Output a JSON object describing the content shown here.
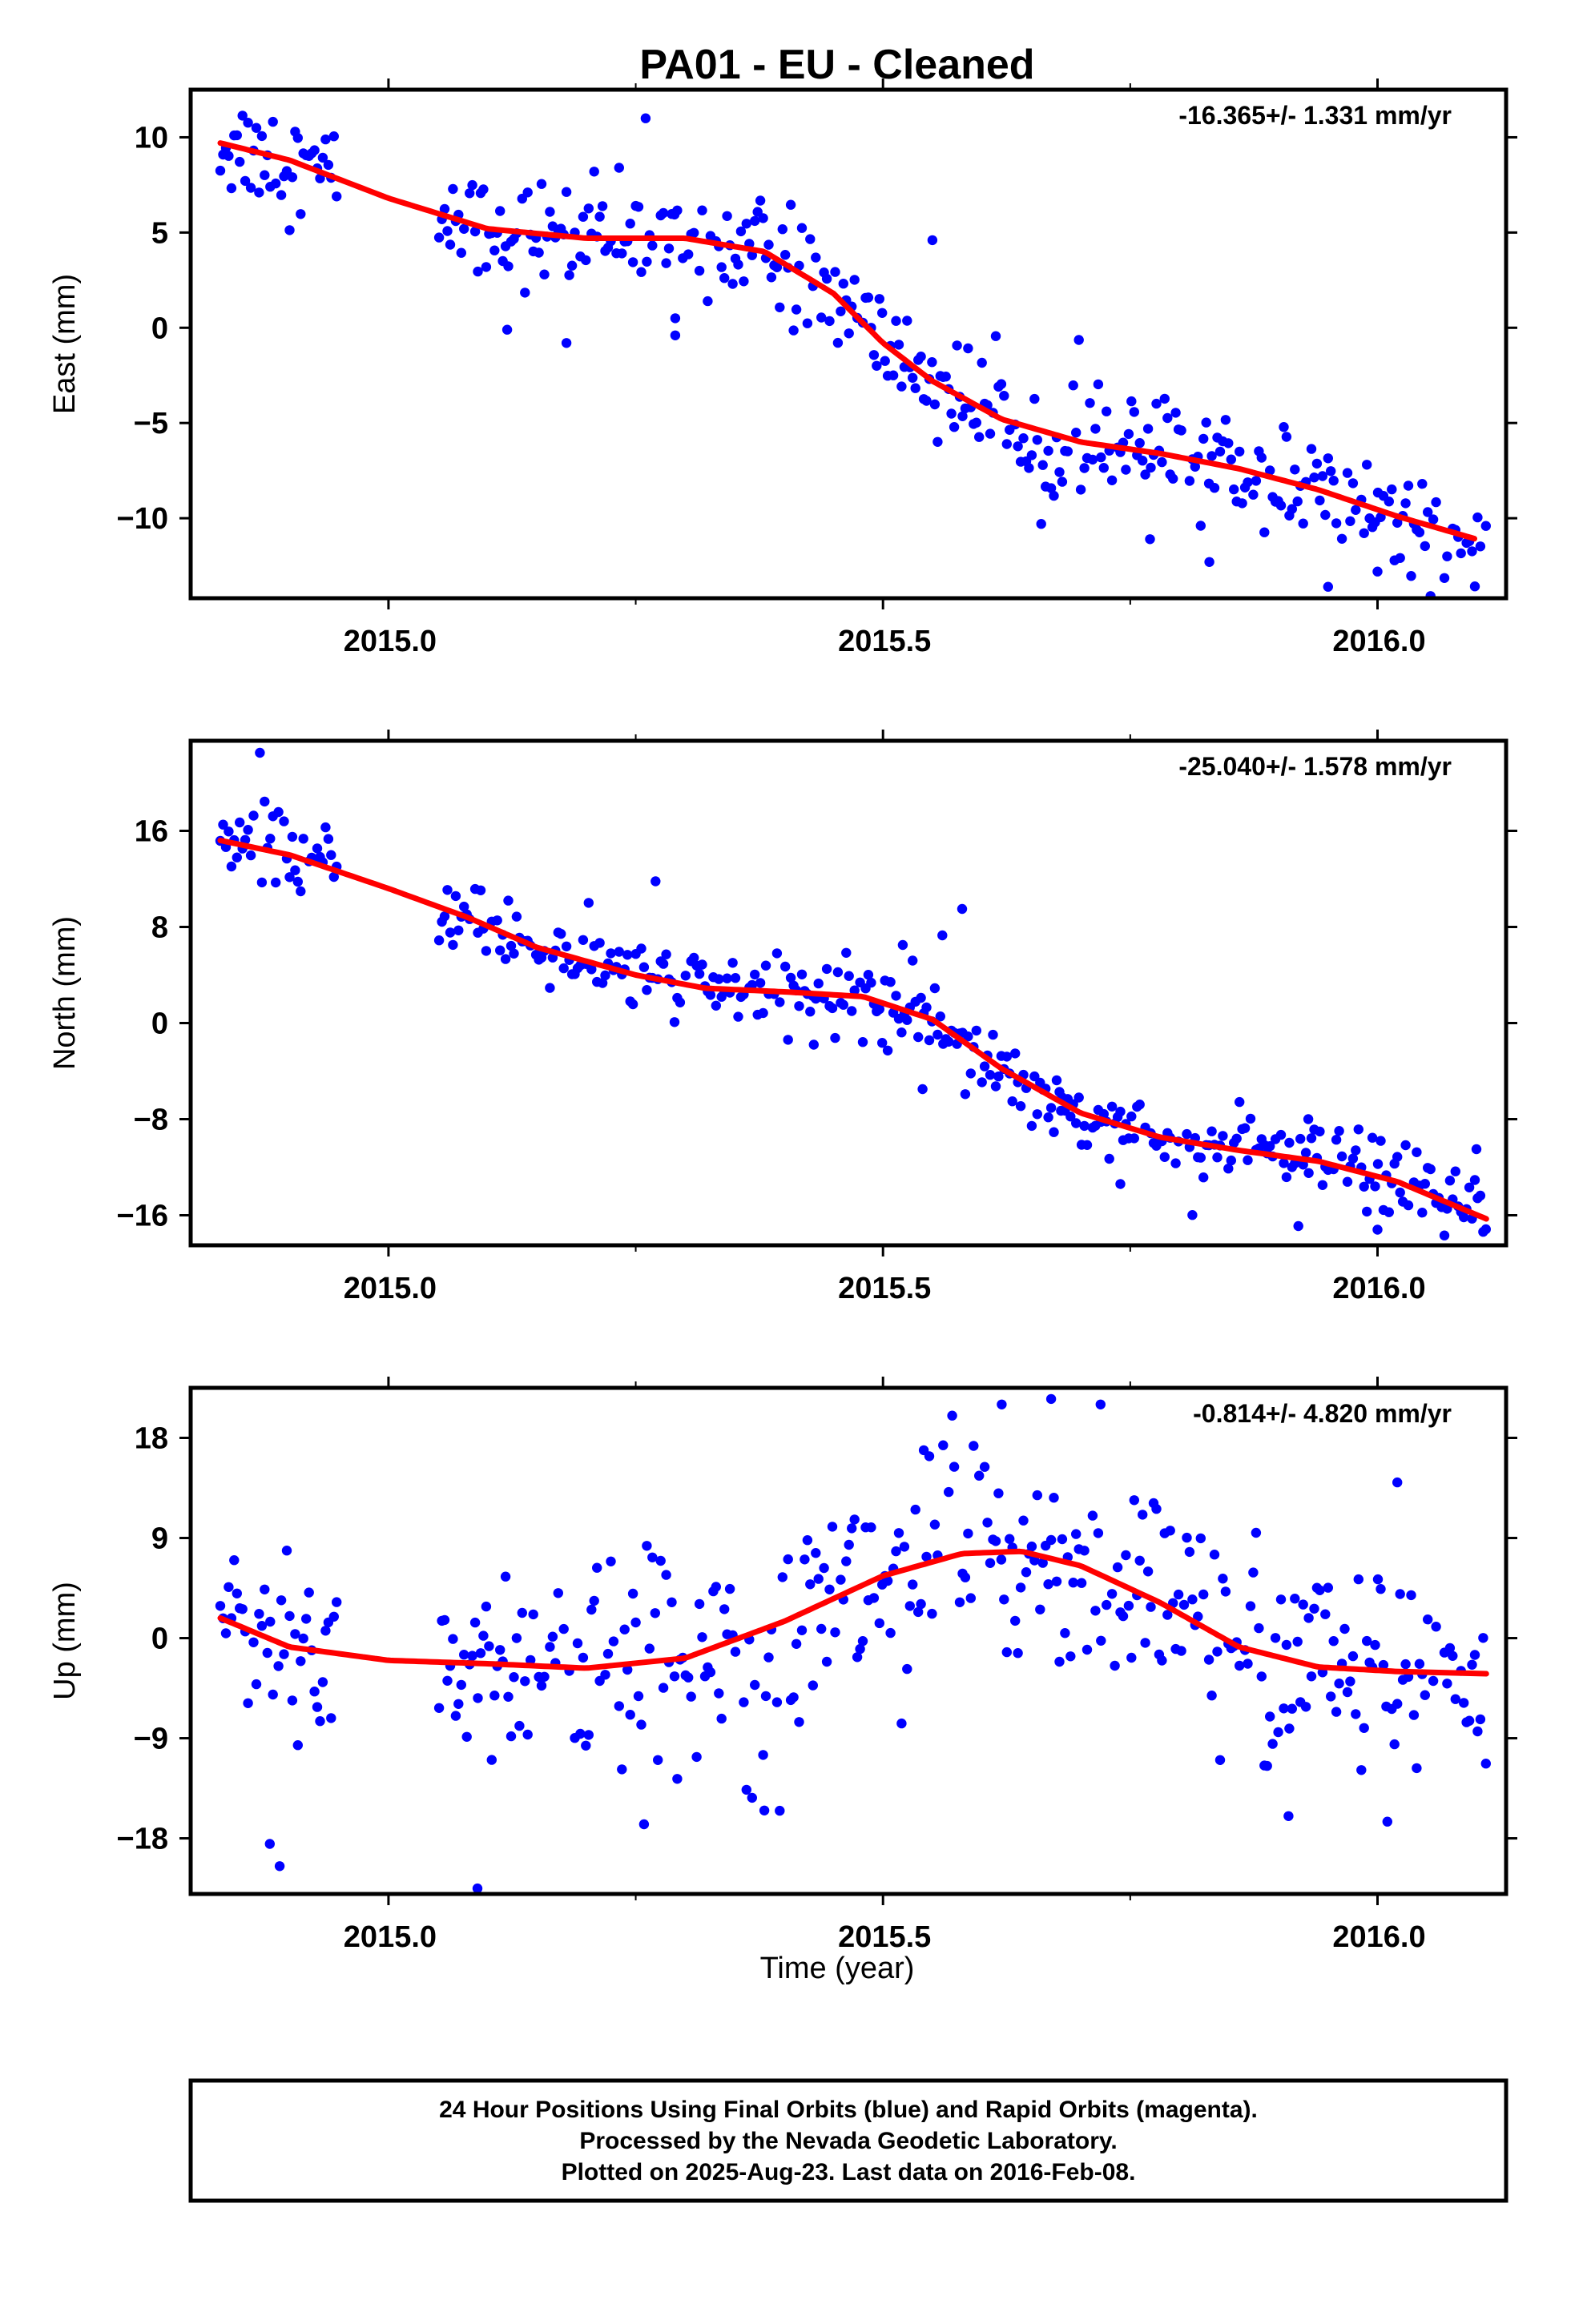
{
  "title": "PA01  - EU - Cleaned",
  "xlabel": "Time (year)",
  "colors": {
    "points": "#0000ff",
    "fit": "#ff0000",
    "frame": "#000000"
  },
  "footer": {
    "line1": "24 Hour Positions Using Final Orbits (blue) and Rapid Orbits (magenta).",
    "line2": "Processed by the Nevada Geodetic Laboratory.",
    "line3": "Plotted on 2025-Aug-23. Last data on 2016-Feb-08."
  },
  "chart_data": [
    {
      "type": "scatter",
      "name": "east",
      "ylabel": "East (mm)",
      "rate_label": "-16.365+/- 1.331 mm/yr",
      "xlim": [
        2014.8,
        2016.13
      ],
      "ylim": [
        -14.2,
        12.5
      ],
      "xticks": [
        2015.0,
        2015.5,
        2016.0
      ],
      "xtick_labels": [
        "2015.0",
        "2015.5",
        "2016.0"
      ],
      "yticks": [
        10,
        5,
        0,
        -5,
        -10
      ],
      "ytick_labels": [
        "10",
        "5",
        "0",
        "−5",
        "−10"
      ],
      "fit_x": [
        2014.83,
        2014.9,
        2015.0,
        2015.1,
        2015.2,
        2015.3,
        2015.38,
        2015.45,
        2015.5,
        2015.55,
        2015.62,
        2015.7,
        2015.78,
        2015.86,
        2015.94,
        2016.02,
        2016.1
      ],
      "fit_y": [
        9.7,
        8.8,
        6.8,
        5.2,
        4.7,
        4.7,
        4.0,
        1.8,
        -0.8,
        -2.8,
        -4.8,
        -6.0,
        -6.6,
        -7.4,
        -8.5,
        -9.9,
        -11.1
      ],
      "trend_start": [
        2014.83,
        9.7
      ],
      "trend_end": [
        2016.11,
        -11.1
      ],
      "scatter_sd": 1.4,
      "outliers": [
        [
          2015.18,
          -0.8
        ],
        [
          2015.12,
          -0.1
        ],
        [
          2015.29,
          0.5
        ],
        [
          2015.29,
          -0.4
        ],
        [
          2015.55,
          4.6
        ],
        [
          2015.26,
          11.0
        ],
        [
          2015.66,
          -10.3
        ],
        [
          2015.77,
          -11.1
        ],
        [
          2015.83,
          -12.3
        ],
        [
          2015.95,
          -13.6
        ],
        [
          2016.0,
          -12.8
        ],
        [
          2015.7,
          -8.5
        ]
      ]
    },
    {
      "type": "scatter",
      "name": "north",
      "ylabel": "North (mm)",
      "rate_label": "-25.040+/- 1.578 mm/yr",
      "xlim": [
        2014.8,
        2016.13
      ],
      "ylim": [
        -18.5,
        23.5
      ],
      "xticks": [
        2015.0,
        2015.5,
        2016.0
      ],
      "xtick_labels": [
        "2015.0",
        "2015.5",
        "2016.0"
      ],
      "yticks": [
        16,
        8,
        0,
        -8,
        -16
      ],
      "ytick_labels": [
        "16",
        "8",
        "0",
        "−8",
        "−16"
      ],
      "fit_x": [
        2014.83,
        2014.9,
        2015.0,
        2015.08,
        2015.15,
        2015.25,
        2015.32,
        2015.4,
        2015.48,
        2015.55,
        2015.62,
        2015.7,
        2015.78,
        2015.86,
        2015.94,
        2016.02,
        2016.11
      ],
      "fit_y": [
        15.2,
        14.0,
        11.2,
        8.8,
        6.3,
        4.0,
        2.9,
        2.6,
        2.2,
        0.3,
        -3.8,
        -7.5,
        -9.5,
        -10.6,
        -11.5,
        -13.2,
        -16.3
      ],
      "trend_start": [
        2014.83,
        15.2
      ],
      "trend_end": [
        2016.11,
        -16.3
      ],
      "scatter_sd": 1.5,
      "outliers": [
        [
          2014.87,
          22.5
        ],
        [
          2015.27,
          11.8
        ],
        [
          2015.52,
          6.5
        ],
        [
          2015.53,
          5.2
        ],
        [
          2015.56,
          7.3
        ],
        [
          2015.58,
          9.5
        ],
        [
          2015.54,
          -5.5
        ],
        [
          2015.43,
          -1.8
        ],
        [
          2015.68,
          -7.3
        ],
        [
          2015.74,
          -13.4
        ],
        [
          2016.0,
          -17.2
        ],
        [
          2015.92,
          -16.9
        ],
        [
          2016.1,
          -10.5
        ],
        [
          2015.93,
          -8.0
        ]
      ]
    },
    {
      "type": "scatter",
      "name": "up",
      "ylabel": "Up (mm)",
      "rate_label": "-0.814+/- 4.820 mm/yr",
      "xlim": [
        2014.8,
        2016.13
      ],
      "ylim": [
        -23,
        22.5
      ],
      "xticks": [
        2015.0,
        2015.5,
        2016.0
      ],
      "xtick_labels": [
        "2015.0",
        "2015.5",
        "2016.0"
      ],
      "yticks": [
        18,
        9,
        0,
        -9,
        -18
      ],
      "ytick_labels": [
        "18",
        "9",
        "0",
        "−9",
        "−18"
      ],
      "fit_x": [
        2014.83,
        2014.9,
        2015.0,
        2015.1,
        2015.2,
        2015.3,
        2015.4,
        2015.5,
        2015.58,
        2015.64,
        2015.7,
        2015.78,
        2015.86,
        2015.94,
        2016.02,
        2016.11
      ],
      "fit_y": [
        1.8,
        -0.8,
        -2.0,
        -2.3,
        -2.7,
        -1.8,
        1.5,
        5.6,
        7.6,
        7.8,
        6.5,
        3.2,
        -0.8,
        -2.6,
        -3.0,
        -3.2
      ],
      "trend_start": [
        2014.83,
        1.8
      ],
      "trend_end": [
        2016.11,
        -3.2
      ],
      "scatter_sd": 5.0,
      "outliers": [
        [
          2014.89,
          -20.5
        ],
        [
          2014.88,
          -18.5
        ],
        [
          2015.09,
          -22.5
        ],
        [
          2015.38,
          -15.5
        ],
        [
          2015.62,
          21.0
        ],
        [
          2015.57,
          20.0
        ],
        [
          2015.67,
          21.5
        ],
        [
          2015.72,
          21.0
        ],
        [
          2016.01,
          -16.5
        ],
        [
          2015.91,
          -16.0
        ],
        [
          2016.02,
          14.0
        ]
      ]
    }
  ]
}
